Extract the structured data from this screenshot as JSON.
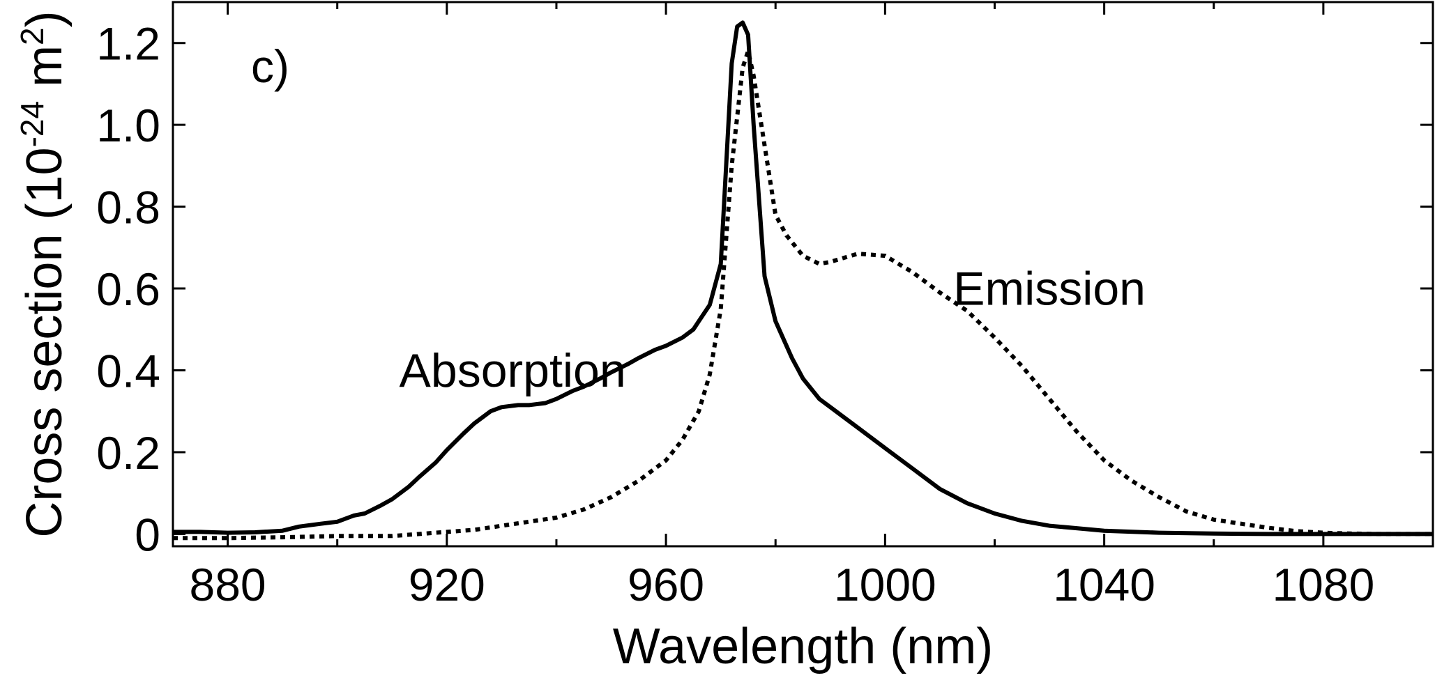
{
  "chart_data": {
    "type": "line",
    "panel_label": "c)",
    "xlabel": "Wavelength (nm)",
    "ylabel": {
      "prefix": "Cross section (10",
      "exponent": "-24",
      "unit": " m",
      "unit_exponent": "2",
      "suffix": ")"
    },
    "xlim": [
      870,
      1100
    ],
    "ylim": [
      -0.03,
      1.3
    ],
    "x_ticks": [
      880,
      920,
      960,
      1000,
      1040,
      1080
    ],
    "x_tick_labels": [
      "880",
      "920",
      "960",
      "1000",
      "1040",
      "1080"
    ],
    "y_ticks": [
      0,
      0.2,
      0.4,
      0.6,
      0.8,
      1.0,
      1.2
    ],
    "y_tick_labels": [
      "0",
      "0.2",
      "0.4",
      "0.6",
      "0.8",
      "1.0",
      "1.2"
    ],
    "grid": false,
    "legend": "none",
    "annotations": [
      {
        "text": "Absorption",
        "x": 932,
        "y": 0.36
      },
      {
        "text": "Emission",
        "x": 1030,
        "y": 0.56
      }
    ],
    "series": [
      {
        "name": "Absorption",
        "style": "solid",
        "color": "#000000",
        "x": [
          870,
          875,
          880,
          885,
          890,
          893,
          897,
          900,
          903,
          905,
          908,
          910,
          913,
          915,
          918,
          920,
          923,
          925,
          928,
          930,
          933,
          935,
          938,
          940,
          943,
          945,
          948,
          950,
          953,
          955,
          958,
          960,
          963,
          965,
          966,
          968,
          970,
          972,
          973,
          974,
          975,
          976,
          978,
          980,
          983,
          985,
          988,
          990,
          995,
          1000,
          1005,
          1010,
          1015,
          1020,
          1025,
          1030,
          1040,
          1050,
          1060,
          1070,
          1080,
          1090,
          1100
        ],
        "y": [
          0.005,
          0.005,
          0.003,
          0.004,
          0.008,
          0.018,
          0.025,
          0.03,
          0.045,
          0.05,
          0.07,
          0.085,
          0.115,
          0.14,
          0.175,
          0.205,
          0.245,
          0.27,
          0.3,
          0.31,
          0.315,
          0.315,
          0.32,
          0.33,
          0.35,
          0.36,
          0.38,
          0.395,
          0.415,
          0.43,
          0.45,
          0.46,
          0.48,
          0.5,
          0.52,
          0.56,
          0.66,
          1.15,
          1.24,
          1.25,
          1.22,
          1.0,
          0.63,
          0.52,
          0.43,
          0.38,
          0.33,
          0.31,
          0.26,
          0.21,
          0.16,
          0.11,
          0.075,
          0.05,
          0.032,
          0.02,
          0.008,
          0.003,
          0.001,
          0.0,
          0.0,
          0.0,
          0.0
        ]
      },
      {
        "name": "Emission",
        "style": "dotted",
        "color": "#000000",
        "x": [
          870,
          880,
          890,
          900,
          910,
          920,
          925,
          930,
          935,
          940,
          945,
          950,
          955,
          960,
          963,
          966,
          968,
          970,
          972,
          974,
          975,
          976,
          978,
          980,
          982,
          985,
          988,
          990,
          995,
          1000,
          1005,
          1010,
          1015,
          1020,
          1025,
          1030,
          1035,
          1040,
          1045,
          1050,
          1055,
          1060,
          1065,
          1070,
          1075,
          1080,
          1085,
          1090,
          1100
        ],
        "y": [
          -0.01,
          -0.01,
          -0.008,
          -0.005,
          -0.005,
          0.005,
          0.01,
          0.02,
          0.03,
          0.04,
          0.06,
          0.09,
          0.13,
          0.18,
          0.23,
          0.3,
          0.39,
          0.55,
          0.9,
          1.14,
          1.18,
          1.12,
          0.95,
          0.78,
          0.73,
          0.68,
          0.66,
          0.665,
          0.685,
          0.68,
          0.64,
          0.59,
          0.545,
          0.48,
          0.41,
          0.33,
          0.25,
          0.18,
          0.13,
          0.09,
          0.055,
          0.035,
          0.025,
          0.015,
          0.007,
          0.003,
          0.001,
          0.0,
          0.0
        ]
      }
    ]
  }
}
